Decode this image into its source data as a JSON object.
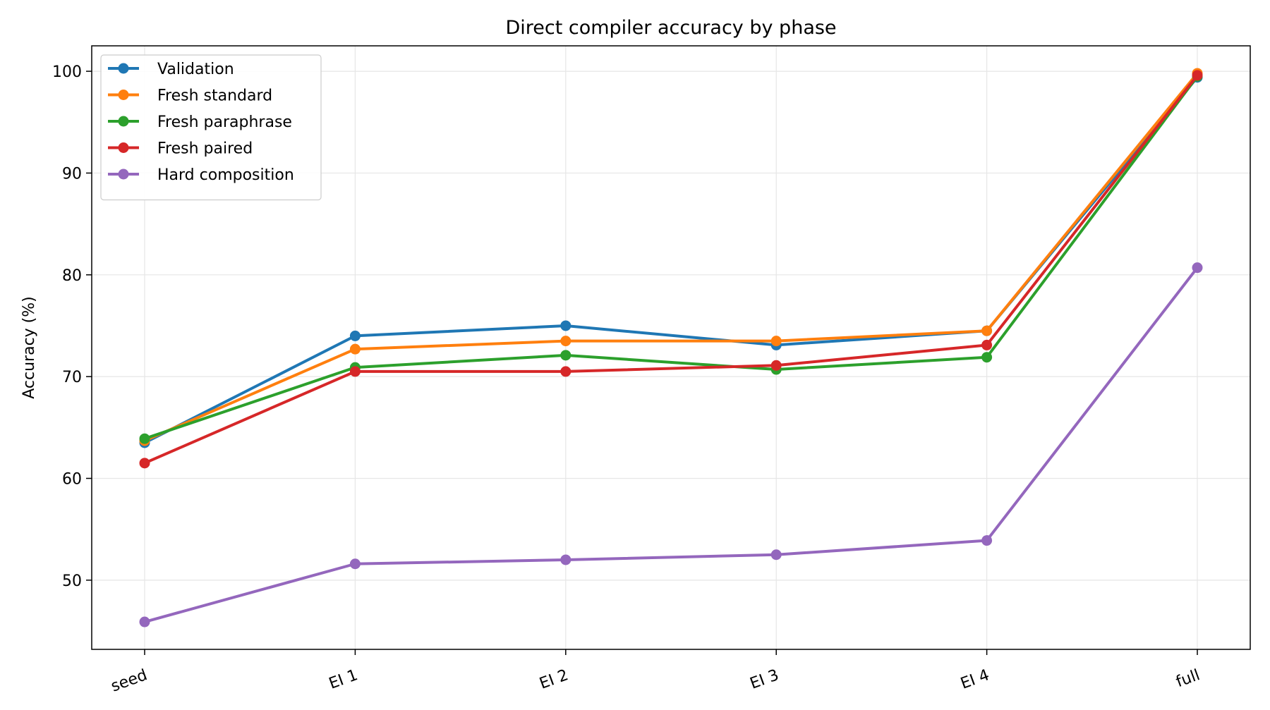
{
  "chart_data": {
    "type": "line",
    "title": "Direct compiler accuracy by phase",
    "xlabel": "",
    "ylabel": "Accuracy (%)",
    "categories": [
      "seed",
      "EI 1",
      "EI 2",
      "EI 3",
      "EI 4",
      "full"
    ],
    "ylim": [
      43.2,
      102.5
    ],
    "yticks": [
      50,
      60,
      70,
      80,
      90,
      100
    ],
    "grid": true,
    "legend_position": "upper left",
    "series": [
      {
        "name": "Validation",
        "color": "#1f77b4",
        "values": [
          63.5,
          74.0,
          75.0,
          73.1,
          74.5,
          99.4
        ]
      },
      {
        "name": "Fresh standard",
        "color": "#ff7f0e",
        "values": [
          63.7,
          72.7,
          73.5,
          73.5,
          74.5,
          99.8
        ]
      },
      {
        "name": "Fresh paraphrase",
        "color": "#2ca02c",
        "values": [
          63.9,
          70.9,
          72.1,
          70.7,
          71.9,
          99.5
        ]
      },
      {
        "name": "Fresh paired",
        "color": "#d62728",
        "values": [
          61.5,
          70.5,
          70.5,
          71.1,
          73.1,
          99.6
        ]
      },
      {
        "name": "Hard composition",
        "color": "#9467bd",
        "values": [
          45.9,
          51.6,
          52.0,
          52.5,
          53.9,
          80.7
        ]
      }
    ]
  }
}
